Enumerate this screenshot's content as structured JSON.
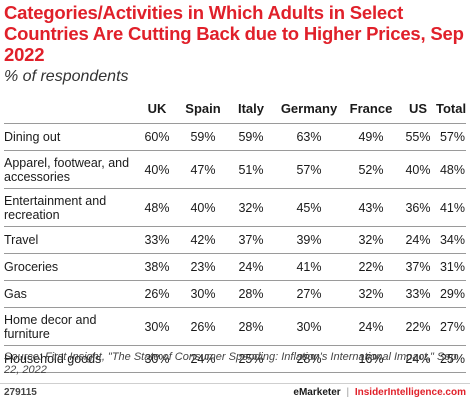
{
  "header": {
    "title": "Categories/Activities in Which Adults in Select Countries Are Cutting Back due to Higher Prices, Sep 2022",
    "subtitle": "% of respondents"
  },
  "chart_data": {
    "type": "table",
    "columns": [
      "UK",
      "Spain",
      "Italy",
      "Germany",
      "France",
      "US",
      "Total"
    ],
    "rows": [
      {
        "category": "Dining out",
        "values": [
          "60%",
          "59%",
          "59%",
          "63%",
          "49%",
          "55%",
          "57%"
        ]
      },
      {
        "category": "Apparel, footwear, and accessories",
        "values": [
          "40%",
          "47%",
          "51%",
          "57%",
          "52%",
          "40%",
          "48%"
        ]
      },
      {
        "category": "Entertainment and recreation",
        "values": [
          "48%",
          "40%",
          "32%",
          "45%",
          "43%",
          "36%",
          "41%"
        ]
      },
      {
        "category": "Travel",
        "values": [
          "33%",
          "42%",
          "37%",
          "39%",
          "32%",
          "24%",
          "34%"
        ]
      },
      {
        "category": "Groceries",
        "values": [
          "38%",
          "23%",
          "24%",
          "41%",
          "22%",
          "37%",
          "31%"
        ]
      },
      {
        "category": "Gas",
        "values": [
          "26%",
          "30%",
          "28%",
          "27%",
          "32%",
          "33%",
          "29%"
        ]
      },
      {
        "category": "Home decor and furniture",
        "values": [
          "30%",
          "26%",
          "28%",
          "30%",
          "24%",
          "22%",
          "27%"
        ]
      },
      {
        "category": "Household goods",
        "values": [
          "30%",
          "24%",
          "25%",
          "28%",
          "16%",
          "24%",
          "25%"
        ]
      }
    ]
  },
  "source": "Source: First Insight, \"The State of Consumer Spending: Inflation's International Impact,\" Sep 22, 2022",
  "footer": {
    "chart_id": "279115",
    "brand_left": "eMarketer",
    "separator": "|",
    "brand_right": "InsiderIntelligence.com"
  }
}
